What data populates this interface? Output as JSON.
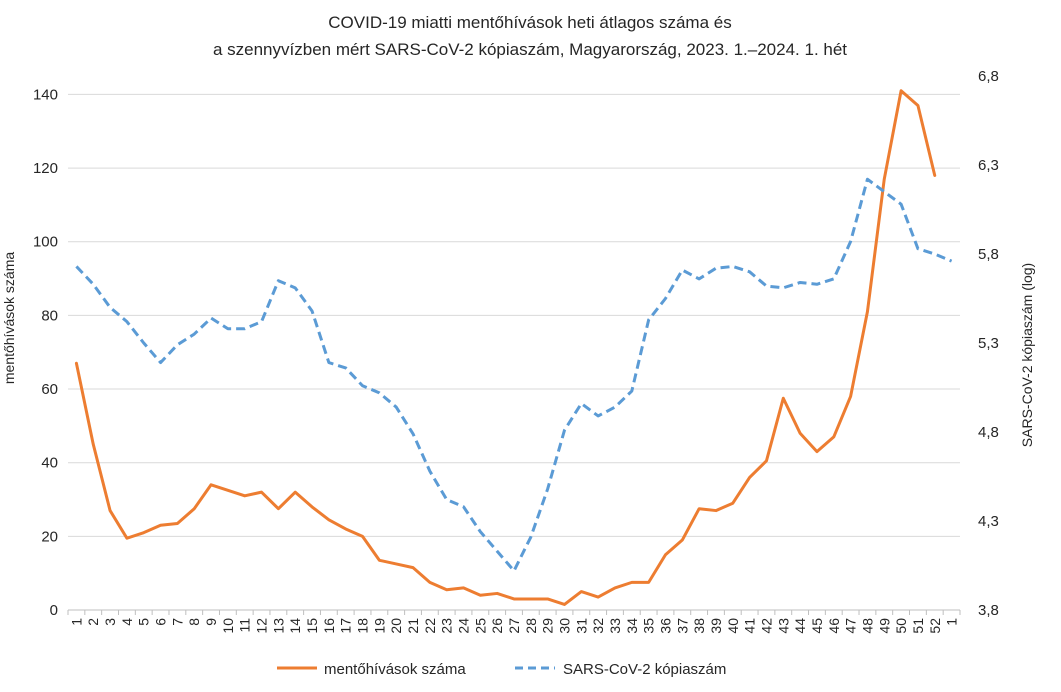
{
  "chart_data": {
    "type": "line",
    "title_lines": [
      "COVID-19 miatti mentőhívások heti átlagos száma és",
      "a szennyvízben mért SARS-CoV-2 kópiaszám, Magyarország, 2023. 1.–2024. 1. hét"
    ],
    "ylabel_left": "mentőhívások száma",
    "ylabel_right": "SARS-CoV-2 kópiaszám (log)",
    "x": [
      "1",
      "2",
      "3",
      "4",
      "5",
      "6",
      "7",
      "8",
      "9",
      "10",
      "11",
      "12",
      "13",
      "14",
      "15",
      "16",
      "17",
      "18",
      "19",
      "20",
      "21",
      "22",
      "23",
      "24",
      "25",
      "26",
      "27",
      "28",
      "29",
      "30",
      "31",
      "32",
      "33",
      "34",
      "35",
      "36",
      "37",
      "38",
      "39",
      "40",
      "41",
      "42",
      "43",
      "44",
      "45",
      "46",
      "47",
      "48",
      "49",
      "50",
      "51",
      "52",
      "1"
    ],
    "ylim_left": [
      0,
      145
    ],
    "yticks_left": [
      0,
      20,
      40,
      60,
      80,
      100,
      120,
      140
    ],
    "yticks_left_labels": [
      "0",
      "20",
      "40",
      "60",
      "80",
      "100",
      "120",
      "140"
    ],
    "ylim_right": [
      3.8,
      6.8
    ],
    "yticks_right": [
      3.8,
      4.3,
      4.8,
      5.3,
      5.8,
      6.3,
      6.8
    ],
    "yticks_right_labels": [
      "3,8",
      "4,3",
      "4,8",
      "5,3",
      "5,8",
      "6,3",
      "6,8"
    ],
    "grid": true,
    "series": [
      {
        "name": "mentőhívások száma",
        "axis": "left",
        "color": "#ED7D31",
        "style": "solid",
        "values": [
          67,
          45,
          27,
          19.5,
          21,
          23,
          23.5,
          27.5,
          34,
          32.5,
          31,
          32,
          27.5,
          32,
          28,
          24.5,
          22,
          20,
          13.5,
          12.5,
          11.5,
          7.5,
          5.5,
          6,
          4,
          4.5,
          3,
          3,
          3,
          1.5,
          5,
          3.5,
          6,
          7.5,
          7.5,
          15,
          19,
          27.5,
          27,
          29,
          36,
          40.5,
          57.5,
          48,
          43,
          47,
          58,
          81,
          117,
          141,
          137,
          118,
          null
        ]
      },
      {
        "name": "SARS-CoV-2 kópiaszám",
        "axis": "right",
        "color": "#5B9BD5",
        "style": "dashed",
        "values": [
          5.73,
          5.63,
          5.5,
          5.42,
          5.3,
          5.19,
          5.29,
          5.35,
          5.44,
          5.38,
          5.38,
          5.42,
          5.65,
          5.61,
          5.48,
          5.19,
          5.16,
          5.06,
          5.02,
          4.94,
          4.79,
          4.58,
          4.42,
          4.38,
          4.24,
          4.13,
          4.02,
          4.21,
          4.48,
          4.81,
          4.96,
          4.89,
          4.94,
          5.03,
          5.43,
          5.55,
          5.71,
          5.66,
          5.72,
          5.73,
          5.7,
          5.62,
          5.61,
          5.64,
          5.63,
          5.66,
          5.87,
          6.22,
          6.15,
          6.08,
          5.83,
          5.8,
          5.76
        ]
      }
    ],
    "legend": {
      "position": "bottom"
    }
  }
}
